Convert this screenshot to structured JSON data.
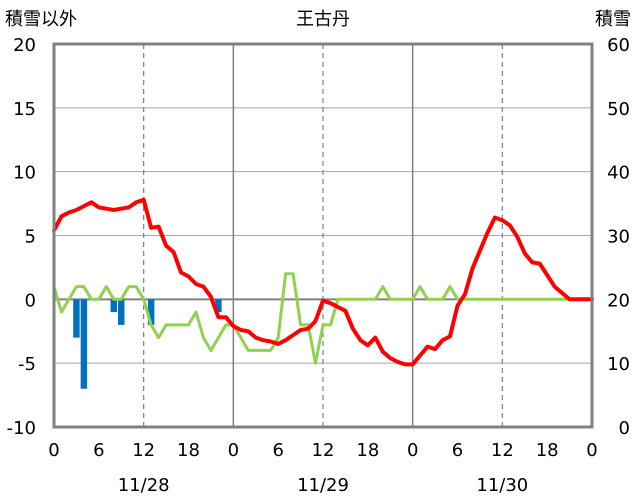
{
  "chart_data": {
    "type": "line",
    "title": "王古丹",
    "y_left_label": "積雪以外",
    "y_right_label": "積雪",
    "y_left_range": [
      -10,
      20
    ],
    "y_left_ticks": [
      "20",
      "15",
      "10",
      "5",
      "0",
      "-5",
      "-10"
    ],
    "y_right_range": [
      0,
      60
    ],
    "y_right_ticks": [
      "60",
      "50",
      "40",
      "30",
      "20",
      "10",
      "0"
    ],
    "x_range": [
      0,
      72
    ],
    "x_ticks": [
      "0",
      "6",
      "12",
      "18",
      "0",
      "6",
      "12",
      "18",
      "0",
      "6",
      "12",
      "18",
      "0"
    ],
    "dates": [
      "11/28",
      "11/29",
      "11/30"
    ],
    "grid": "dashed at 12h, solid at 0h",
    "colors": {
      "temperature": "#ff0000",
      "wind": "#92d050",
      "precipitation": "#0070c0",
      "snow_depth": "#7030a0",
      "frame": "#808080"
    },
    "series": [
      {
        "key": "temperature",
        "axis": "left",
        "style": "line",
        "x": [
          0,
          1,
          2,
          3,
          4,
          5,
          6,
          7,
          8,
          9,
          10,
          11,
          12,
          13,
          14,
          15,
          16,
          17,
          18,
          19,
          20,
          21,
          22,
          23,
          24,
          25,
          26,
          27,
          28,
          29,
          30,
          31,
          32,
          33,
          34,
          35,
          36,
          37,
          38,
          39,
          40,
          41,
          42,
          43,
          44,
          45,
          46,
          47,
          48,
          49,
          50,
          51,
          52,
          53,
          54,
          55,
          56,
          57,
          58,
          59,
          60,
          61,
          62,
          63,
          64,
          65,
          66,
          67,
          68,
          69,
          70,
          71,
          72
        ],
        "values": [
          5.4,
          6.5,
          6.8,
          7.0,
          7.3,
          7.6,
          7.2,
          7.1,
          7.0,
          7.1,
          7.2,
          7.6,
          7.8,
          5.6,
          5.7,
          4.2,
          3.7,
          2.1,
          1.8,
          1.2,
          1.0,
          0.2,
          -1.4,
          -1.4,
          -2.1,
          -2.4,
          -2.5,
          -3.0,
          -3.2,
          -3.3,
          -3.5,
          -3.2,
          -2.8,
          -2.4,
          -2.3,
          -1.7,
          -0.1,
          -0.3,
          -0.6,
          -0.9,
          -2.3,
          -3.2,
          -3.6,
          -3.0,
          -4.1,
          -4.6,
          -4.9,
          -5.1,
          -5.1,
          -4.4,
          -3.7,
          -3.9,
          -3.2,
          -2.9,
          -0.5,
          0.4,
          2.4,
          3.8,
          5.2,
          6.4,
          6.2,
          5.8,
          4.9,
          3.6,
          2.9,
          2.8,
          1.9,
          1.0,
          0.5,
          0.0,
          0.0,
          0.0,
          0.0
        ]
      },
      {
        "key": "wind",
        "axis": "left",
        "style": "line",
        "x": [
          0,
          1,
          2,
          3,
          4,
          5,
          6,
          7,
          8,
          9,
          10,
          11,
          12,
          13,
          14,
          15,
          16,
          17,
          18,
          19,
          20,
          21,
          22,
          23,
          24,
          25,
          26,
          27,
          28,
          29,
          30,
          31,
          32,
          33,
          34,
          35,
          36,
          37,
          38,
          39,
          40,
          41,
          42,
          43,
          44,
          45,
          46,
          47,
          48,
          49,
          50,
          51,
          52,
          53,
          54,
          55,
          56,
          57,
          58,
          59,
          60,
          61,
          62,
          63,
          64,
          65,
          66,
          67,
          68,
          69,
          70,
          71
        ],
        "values": [
          1,
          -1,
          0,
          1,
          1,
          0,
          0,
          1,
          0,
          0,
          1,
          1,
          0,
          -2,
          -3,
          -2,
          -2,
          -2,
          -2,
          -1,
          -3,
          -4,
          -3,
          -2,
          -2,
          -3,
          -4,
          -4,
          -4,
          -4,
          -3,
          2,
          2,
          -2,
          -2,
          -5,
          -2,
          -2,
          0,
          0,
          0,
          0,
          0,
          0,
          1,
          0,
          0,
          0,
          0,
          1,
          0,
          0,
          0,
          1,
          0,
          0,
          0,
          0,
          0,
          0,
          0,
          0,
          0,
          0,
          0,
          0,
          0,
          0,
          0,
          0,
          0,
          0
        ]
      },
      {
        "key": "precipitation",
        "axis": "left",
        "style": "bar",
        "x": [
          3,
          4,
          8,
          9,
          13,
          22
        ],
        "values": [
          -3,
          -7,
          -1,
          -2,
          -2,
          -1
        ]
      },
      {
        "key": "snow_depth",
        "axis": "right",
        "style": "line",
        "x": [
          0,
          72
        ],
        "values": [
          0,
          0
        ]
      }
    ]
  }
}
